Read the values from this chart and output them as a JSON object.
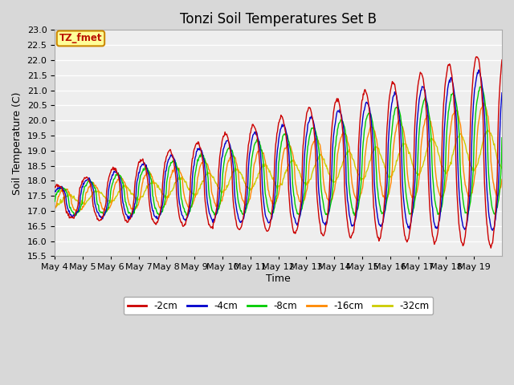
{
  "title": "Tonzi Soil Temperatures Set B",
  "xlabel": "Time",
  "ylabel": "Soil Temperature (C)",
  "ylim": [
    15.5,
    23.0
  ],
  "yticks": [
    15.5,
    16.0,
    16.5,
    17.0,
    17.5,
    18.0,
    18.5,
    19.0,
    19.5,
    20.0,
    20.5,
    21.0,
    21.5,
    22.0,
    22.5,
    23.0
  ],
  "fig_bg": "#d8d8d8",
  "plot_bg": "#eeeeee",
  "series": [
    {
      "label": "-2cm",
      "color": "#cc0000"
    },
    {
      "label": "-4cm",
      "color": "#0000cc"
    },
    {
      "label": "-8cm",
      "color": "#00cc00"
    },
    {
      "label": "-16cm",
      "color": "#ff8800"
    },
    {
      "label": "-32cm",
      "color": "#cccc00"
    }
  ],
  "annotation_text": "TZ_fmet",
  "annotation_bg": "#ffff99",
  "annotation_border": "#cc8800",
  "days": [
    "May 4",
    "May 5",
    "May 6",
    "May 7",
    "May 8",
    "May 9",
    "May 10",
    "May 11",
    "May 12",
    "May 13",
    "May 14",
    "May 15",
    "May 16",
    "May 17",
    "May 18",
    "May 19"
  ],
  "n_days": 16,
  "pts_per_day": 48,
  "title_fontsize": 12,
  "axis_label_fontsize": 9,
  "tick_fontsize": 8
}
